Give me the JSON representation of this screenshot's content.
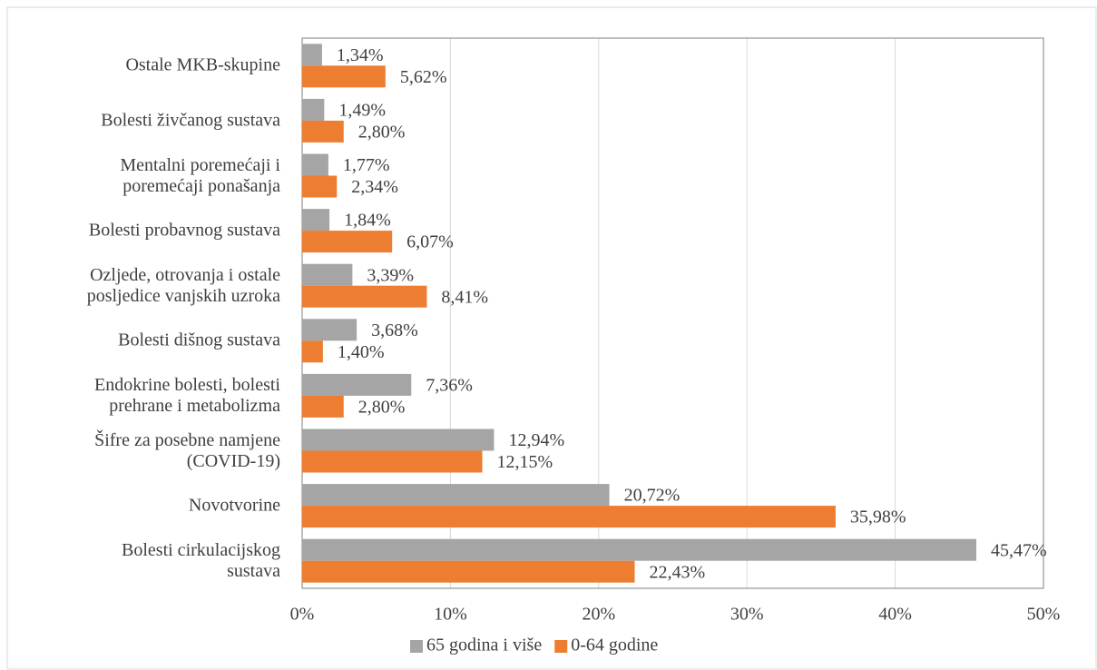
{
  "chart_data": {
    "type": "bar",
    "orientation": "horizontal",
    "categories": [
      "Ostale MKB-skupine",
      "Bolesti živčanog sustava",
      "Mentalni poremećaji i\nporemećaji ponašanja",
      "Bolesti probavnog sustava",
      "Ozljede, otrovanja i ostale\nposljedice vanjskih uzroka",
      "Bolesti dišnog sustava",
      "Endokrine bolesti, bolesti\nprehrane i metabolizma",
      "Šifre za posebne namjene\n(COVID-19)",
      "Novotvorine",
      "Bolesti cirkulacijskog\nsustava"
    ],
    "series": [
      {
        "name": "65 godina i više",
        "color": "#a5a5a5",
        "values": [
          1.34,
          1.49,
          1.77,
          1.84,
          3.39,
          3.68,
          7.36,
          12.94,
          20.72,
          45.47
        ],
        "value_labels": [
          "1,34%",
          "1,49%",
          "1,77%",
          "1,84%",
          "3,39%",
          "3,68%",
          "7,36%",
          "12,94%",
          "20,72%",
          "45,47%"
        ]
      },
      {
        "name": "0-64 godine",
        "color": "#ed7d31",
        "values": [
          5.62,
          2.8,
          2.34,
          6.07,
          8.41,
          1.4,
          2.8,
          12.15,
          35.98,
          22.43
        ],
        "value_labels": [
          "5,62%",
          "2,80%",
          "2,34%",
          "6,07%",
          "8,41%",
          "1,40%",
          "2,80%",
          "12,15%",
          "35,98%",
          "22,43%"
        ]
      }
    ],
    "xlim": [
      0,
      50
    ],
    "xticks": [
      {
        "value": 0,
        "label": "0%"
      },
      {
        "value": 10,
        "label": "10%"
      },
      {
        "value": 20,
        "label": "20%"
      },
      {
        "value": 30,
        "label": "30%"
      },
      {
        "value": 40,
        "label": "40%"
      },
      {
        "value": 50,
        "label": "50%"
      }
    ],
    "grid": true,
    "legend": "bottom"
  }
}
